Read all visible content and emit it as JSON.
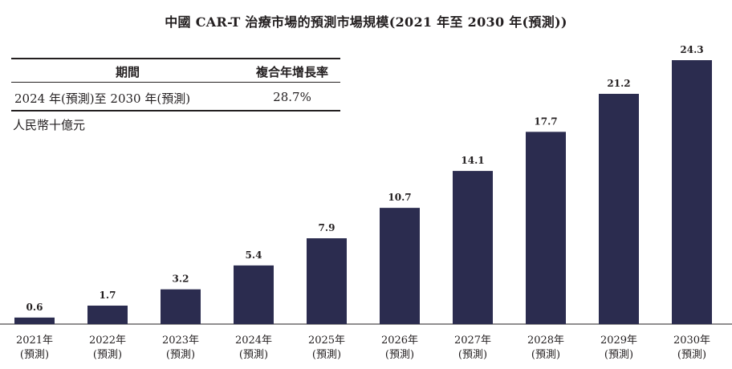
{
  "title": "中國 CAR-T 治療市場的預測市場規模(2021 年至 2030 年(預測))",
  "cagr_table": {
    "header_period": "期間",
    "header_rate": "複合年增長率",
    "period": "2024 年(預測)至 2030 年(預測)",
    "rate": "28.7%"
  },
  "unit_label": "人民幣十億元",
  "colors": {
    "bar": "#2b2c4f",
    "text": "#231f20"
  },
  "chart_data": {
    "type": "bar",
    "title": "中國 CAR-T 治療市場的預測市場規模(2021 年至 2030 年(預測))",
    "categories": [
      "2021年",
      "2022年",
      "2023年",
      "2024年",
      "2025年",
      "2026年",
      "2027年",
      "2028年",
      "2029年",
      "2030年"
    ],
    "category_sublabel": "(預測)",
    "values": [
      0.6,
      1.7,
      3.2,
      5.4,
      7.9,
      10.7,
      14.1,
      17.7,
      21.2,
      24.3
    ],
    "value_labels": [
      "0.6",
      "1.7",
      "3.2",
      "5.4",
      "7.9",
      "10.7",
      "14.1",
      "17.7",
      "21.2",
      "24.3"
    ],
    "ylabel": "人民幣十億元",
    "ylim": [
      0,
      24.3
    ],
    "grid": false,
    "legend": "none"
  }
}
